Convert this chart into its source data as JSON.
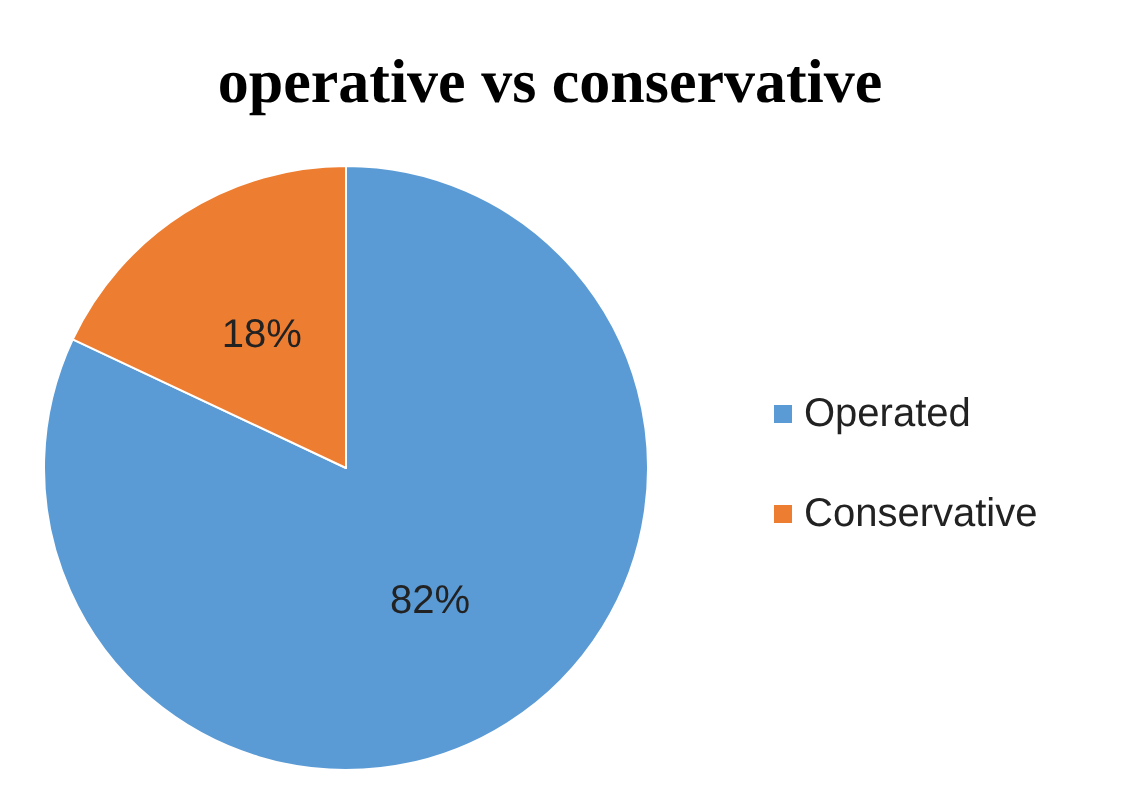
{
  "chart_data": {
    "type": "pie",
    "title": "operative vs conservative",
    "categories": [
      "Operated",
      "Conservative"
    ],
    "values": [
      82,
      18
    ],
    "colors": [
      "#5b9bd5",
      "#ed7d31"
    ],
    "value_labels": [
      "82%",
      "18%"
    ],
    "legend": "right"
  }
}
